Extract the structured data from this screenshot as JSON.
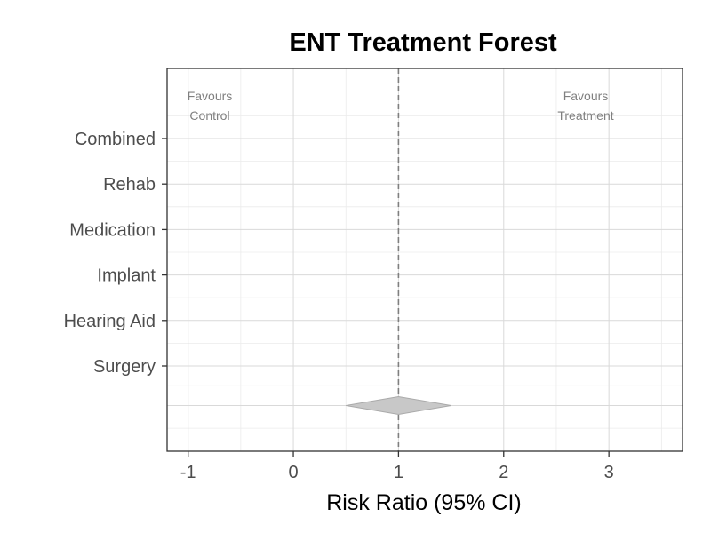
{
  "chart_data": {
    "type": "forest",
    "title": "ENT Treatment Forest",
    "xlabel": "Risk Ratio (95% CI)",
    "ylabel": "",
    "xlim": [
      -1.2,
      3.7
    ],
    "x_ticks": [
      -1,
      0,
      1,
      2,
      3
    ],
    "x_tick_labels": [
      "-1",
      "0",
      "1",
      "2",
      "3"
    ],
    "categories": [
      "Combined",
      "Rehab",
      "Medication",
      "Implant",
      "Hearing Aid",
      "Surgery"
    ],
    "studies": [],
    "reference_line": {
      "x": 1,
      "style": "dashed"
    },
    "summary": {
      "estimate": 1.0,
      "lower": 0.5,
      "upper": 1.5
    },
    "annotations": {
      "left": [
        "Favours",
        "Control"
      ],
      "right": [
        "Favours",
        "Treatment"
      ]
    },
    "grid": true,
    "colors": {
      "grid_major": "#d9d9d9",
      "grid_minor": "#ebebeb",
      "panel_border": "#333333",
      "reference_line": "#7f7f7f",
      "summary_fill": "#c8c8c8",
      "summary_stroke": "#aaaaaa",
      "tick_label": "#4d4d4d",
      "annotation": "#808080"
    }
  }
}
